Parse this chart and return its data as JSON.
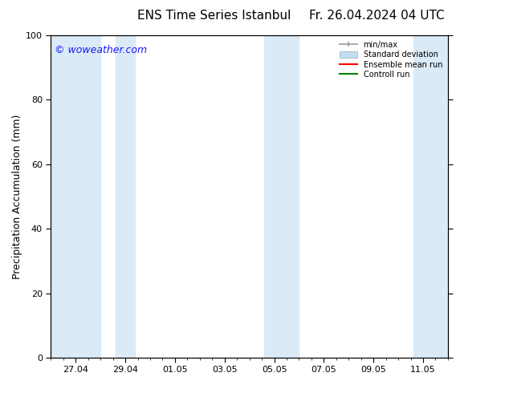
{
  "title_left": "ENS Time Series Istanbul",
  "title_right": "Fr. 26.04.2024 04 UTC",
  "ylabel": "Precipitation Accumulation (mm)",
  "ylim": [
    0,
    100
  ],
  "yticks": [
    0,
    20,
    40,
    60,
    80,
    100
  ],
  "background_color": "#ffffff",
  "plot_bg_color": "#ffffff",
  "watermark": "© woweather.com",
  "watermark_color": "#1a1aff",
  "shade_color": "#daeaf7",
  "x_tick_labels": [
    "27.04",
    "29.04",
    "01.05",
    "03.05",
    "05.05",
    "07.05",
    "09.05",
    "11.05"
  ],
  "x_tick_positions": [
    1,
    3,
    5,
    7,
    9,
    11,
    13,
    15
  ],
  "x_lim": [
    0,
    16
  ],
  "shaded_bands": [
    [
      0.0,
      2.0
    ],
    [
      2.6,
      3.4
    ],
    [
      8.6,
      10.0
    ],
    [
      14.6,
      16.0
    ]
  ],
  "legend_items": [
    {
      "label": "min/max",
      "color": "#999999",
      "style": "errorbar"
    },
    {
      "label": "Standard deviation",
      "color": "#c5ddf0",
      "style": "rect"
    },
    {
      "label": "Ensemble mean run",
      "color": "#ff0000",
      "style": "line"
    },
    {
      "label": "Controll run",
      "color": "#008000",
      "style": "line"
    }
  ],
  "figsize": [
    6.34,
    4.9
  ],
  "dpi": 100,
  "title_fontsize": 11,
  "ylabel_fontsize": 9,
  "tick_fontsize": 8,
  "watermark_fontsize": 9
}
